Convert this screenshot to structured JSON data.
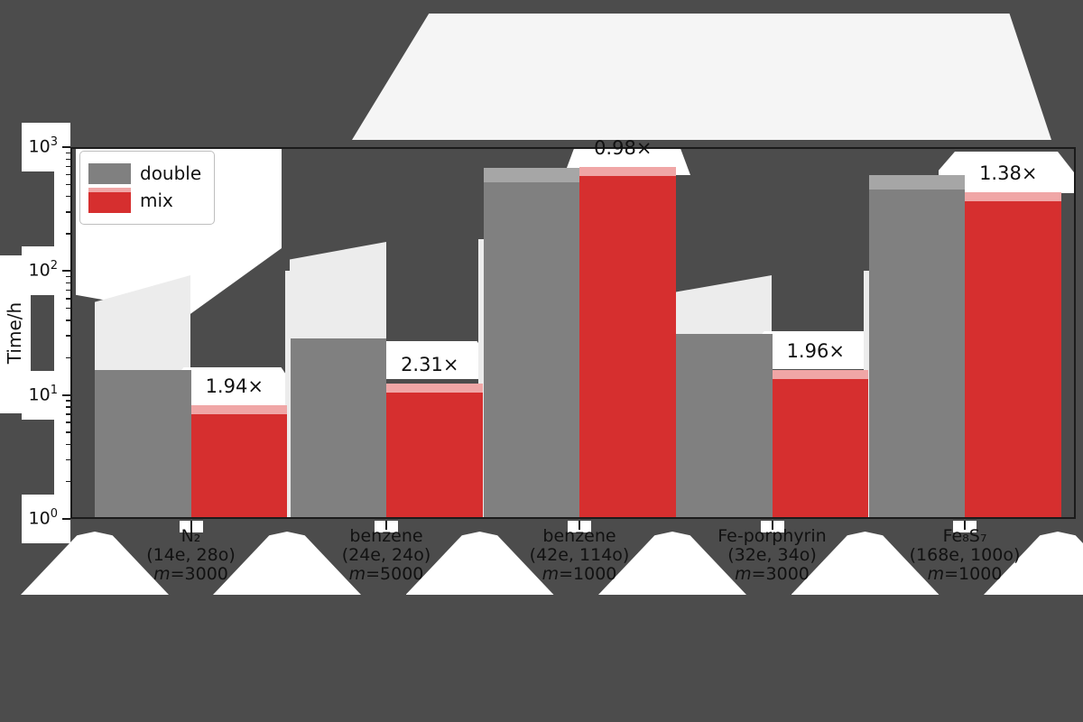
{
  "figure": {
    "background": "#4c4c4c",
    "y_axis": {
      "label": "Time/h",
      "ticks": [
        {
          "base": "10",
          "exp": "3"
        },
        {
          "base": "10",
          "exp": "2"
        },
        {
          "base": "10",
          "exp": "1"
        },
        {
          "base": "10",
          "exp": "0"
        }
      ]
    },
    "legend": {
      "items": [
        {
          "label": "double",
          "color": "#808080"
        },
        {
          "label": "mix",
          "color": "#d62f2f"
        }
      ]
    }
  },
  "chart_data": {
    "type": "bar",
    "scale": "log-y",
    "title": "",
    "xlabel": "",
    "ylabel": "Time/h",
    "ylim": [
      1,
      1000
    ],
    "grid": false,
    "legend_position": "upper left",
    "categories": [
      {
        "name": "N₂",
        "active_space": "(14e, 28o)",
        "bond_dim": "m=3000"
      },
      {
        "name": "benzene",
        "active_space": "(24e, 24o)",
        "bond_dim": "m=5000"
      },
      {
        "name": "benzene",
        "active_space": "(42e, 114o)",
        "bond_dim": "m=1000"
      },
      {
        "name": "Fe-porphyrin",
        "active_space": "(32e, 34o)",
        "bond_dim": "m=3000"
      },
      {
        "name": "Fe₈S₇",
        "active_space": "(168e, 100o)",
        "bond_dim": "m=1000"
      }
    ],
    "series": [
      {
        "name": "double",
        "color": "#808080",
        "light_cap_color": "#a6a6a6",
        "values": [
          16,
          28.6,
          680,
          31,
          596
        ]
      },
      {
        "name": "mix",
        "color": "#d62f2f",
        "light_cap_color": "#f0a6a6",
        "values": [
          8.25,
          12.4,
          694,
          15.8,
          432
        ]
      }
    ],
    "annotations": [
      "1.94×",
      "2.31×",
      "0.98×",
      "1.96×",
      "1.38×"
    ]
  }
}
